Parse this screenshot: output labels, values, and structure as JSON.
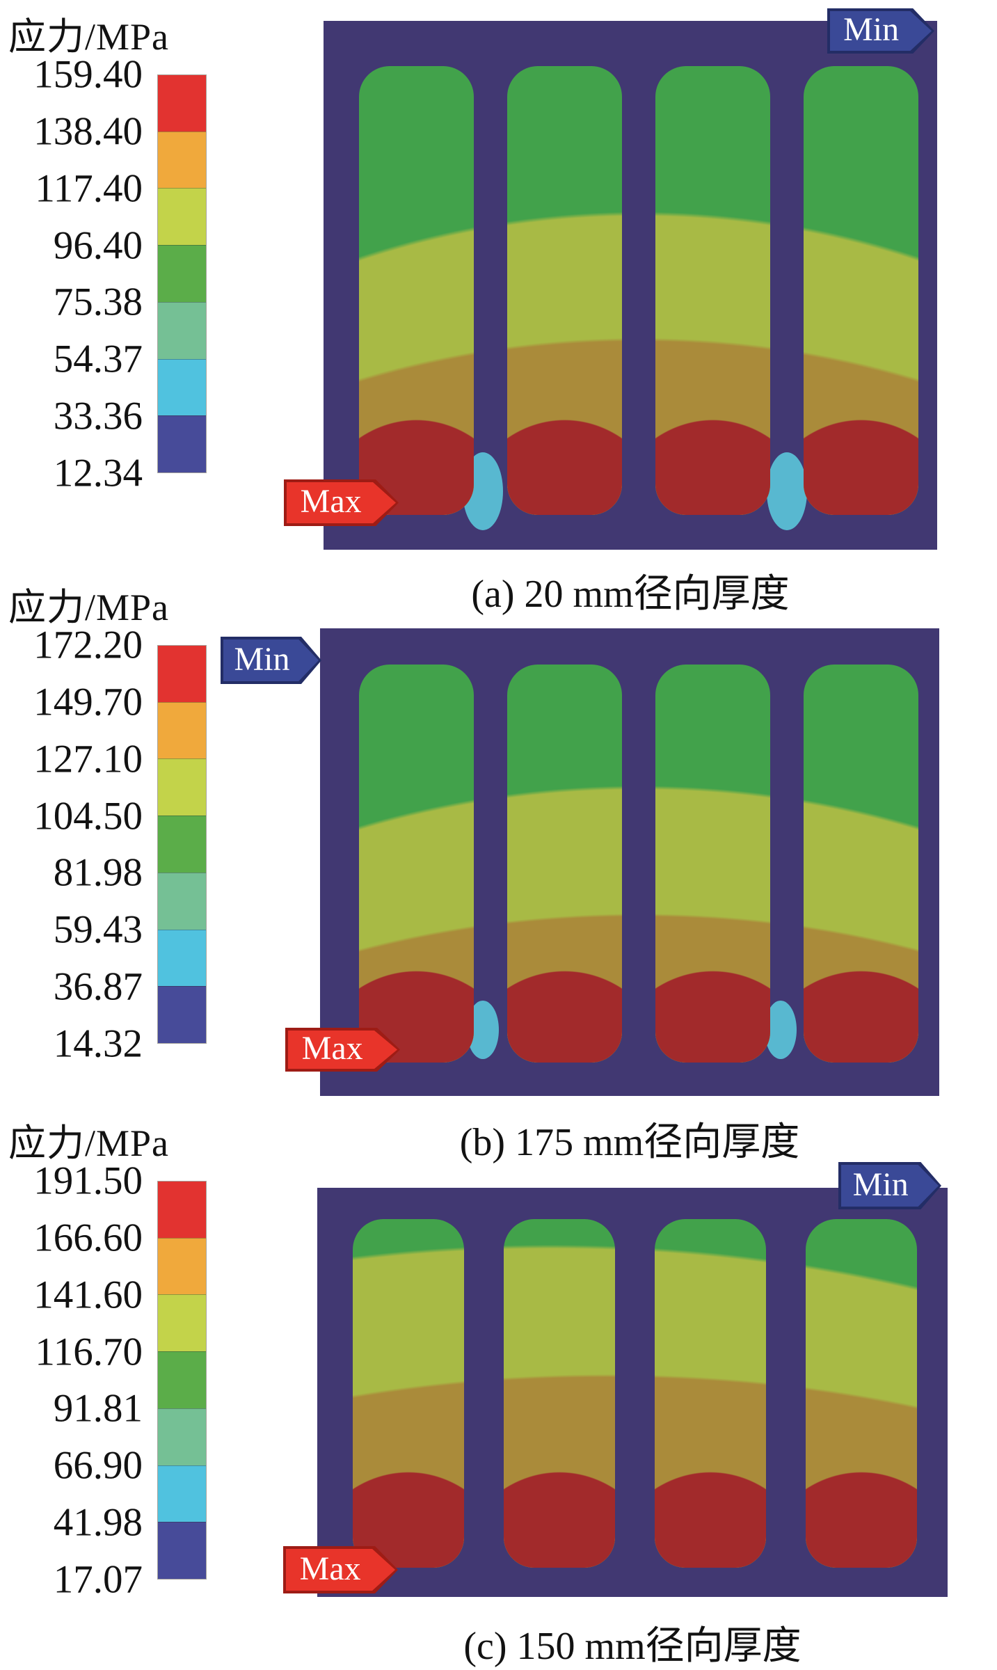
{
  "panels": [
    {
      "id": "a",
      "legend": {
        "title": "应力/MPa",
        "ticks": [
          "159.40",
          "138.40",
          "117.40",
          "96.40",
          "75.38",
          "54.37",
          "33.36",
          "12.34"
        ]
      },
      "caption": "(a) 20 mm径向厚度",
      "min_label": "Min",
      "max_label": "Max"
    },
    {
      "id": "b",
      "legend": {
        "title": "应力/MPa",
        "ticks": [
          "172.20",
          "149.70",
          "127.10",
          "104.50",
          "81.98",
          "59.43",
          "36.87",
          "14.32"
        ]
      },
      "caption": "(b) 175 mm径向厚度",
      "min_label": "Min",
      "max_label": "Max"
    },
    {
      "id": "c",
      "legend": {
        "title": "应力/MPa",
        "ticks": [
          "191.50",
          "166.60",
          "141.60",
          "116.70",
          "91.81",
          "66.90",
          "41.98",
          "17.07"
        ]
      },
      "caption": "(c) 150 mm径向厚度",
      "min_label": "Min",
      "max_label": "Max"
    }
  ],
  "colors": {
    "legend_segments": [
      "#e23330",
      "#f0a93c",
      "#c3d34a",
      "#5bad49",
      "#75c095",
      "#50c2df",
      "#474b99"
    ],
    "plot_background": "#413872",
    "band_green": "#42a24b",
    "band_yellow_green": "#a8ba45",
    "band_olive": "#aa8b3a",
    "band_red": "#a22a2b",
    "spot_cyan": "#58b8d0",
    "min_tag_fill": "#3a4997",
    "min_tag_border": "#232d66",
    "max_tag_fill": "#e8342a",
    "max_tag_border": "#9e1c15"
  },
  "chart_data": [
    {
      "type": "heatmap",
      "title": "(a) 20 mm径向厚度",
      "legend_title": "应力/MPa",
      "scale_mpa": [
        159.4,
        138.4,
        117.4,
        96.4,
        75.38,
        54.37,
        33.36,
        12.34
      ],
      "max_mpa": 159.4,
      "min_mpa": 12.34,
      "annotations": [
        "Min",
        "Max"
      ],
      "legend_position": "left",
      "description": "Stress contour of 4 rounded slots: green low-stress at top grading through yellow-green and olive to dark-red maxima at slot bottoms; Min marker top-right, Max marker bottom-left; cyan low spots between slots 1-2 and 3-4"
    },
    {
      "type": "heatmap",
      "title": "(b) 175 mm径向厚度",
      "legend_title": "应力/MPa",
      "scale_mpa": [
        172.2,
        149.7,
        127.1,
        104.5,
        81.98,
        59.43,
        36.87,
        14.32
      ],
      "max_mpa": 172.2,
      "min_mpa": 14.32,
      "annotations": [
        "Min",
        "Max"
      ],
      "legend_position": "left",
      "description": "Same slot pattern; Min marker top-left, Max marker bottom-left; red maxima at slot bottoms"
    },
    {
      "type": "heatmap",
      "title": "(c) 150 mm径向厚度",
      "legend_title": "应力/MPa",
      "scale_mpa": [
        191.5,
        166.6,
        141.6,
        116.7,
        91.81,
        66.9,
        41.98,
        17.07
      ],
      "max_mpa": 191.5,
      "min_mpa": 17.07,
      "annotations": [
        "Min",
        "Max"
      ],
      "legend_position": "left",
      "description": "Thin green cap, wide yellow-green band, olive band and red bottoms; Min marker top-right, Max marker bottom-left"
    }
  ]
}
